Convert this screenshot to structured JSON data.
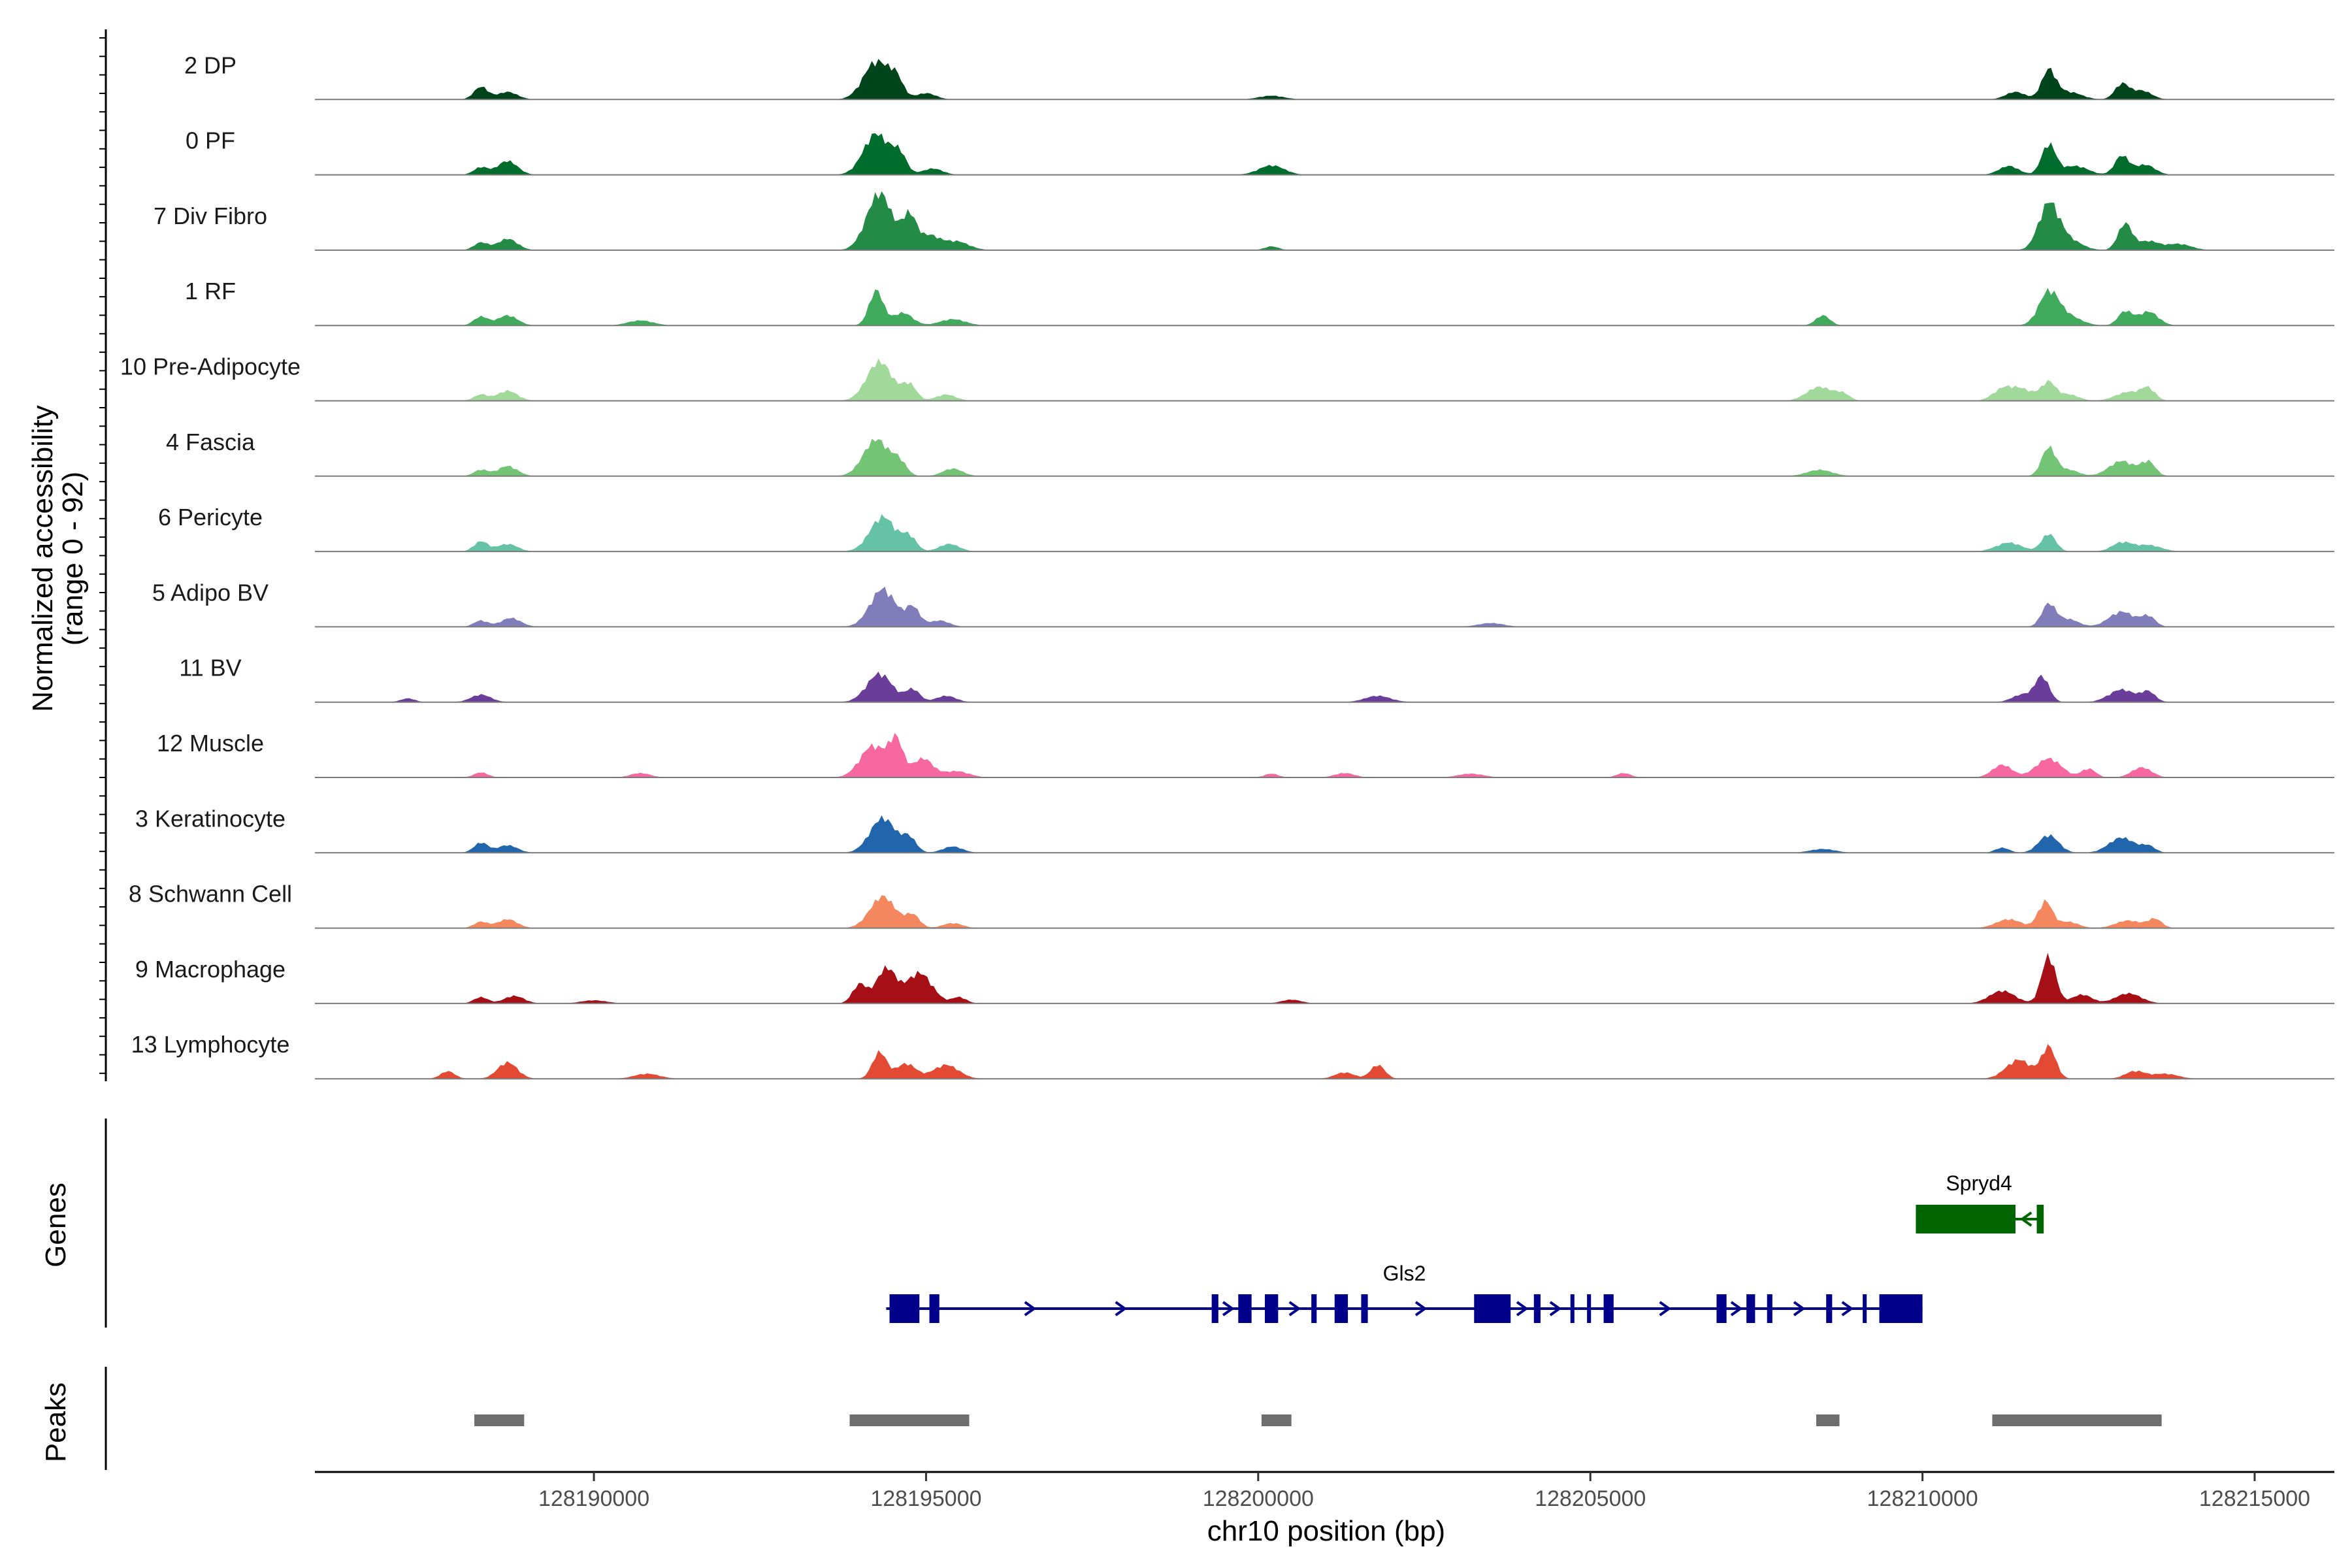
{
  "chart_data": {
    "type": "coverage",
    "chromosome": "chr10",
    "xlabel": "chr10 position (bp)",
    "xlim": [
      128185800,
      128216200
    ],
    "x_ticks": [
      128190000,
      128195000,
      128200000,
      128205000,
      128210000,
      128215000
    ],
    "x_tick_labels": [
      "128190000",
      "128195000",
      "128200000",
      "128205000",
      "128210000",
      "128215000"
    ],
    "coverage_ylabel_line1": "Normalized accessibility",
    "coverage_ylabel_line2": "(range 0 - 92)",
    "coverage_range": [
      0,
      92
    ],
    "genes_ylabel": "Genes",
    "peaks_ylabel": "Peaks",
    "tracks": [
      {
        "name": "2 DP",
        "color": "#00441b",
        "peaks": [
          [
            128188300,
            0.2
          ],
          [
            128188700,
            0.12
          ],
          [
            128194250,
            0.6
          ],
          [
            128194550,
            0.28
          ],
          [
            128195000,
            0.1
          ],
          [
            128200200,
            0.06
          ],
          [
            128211900,
            0.45
          ],
          [
            128211400,
            0.12
          ],
          [
            128212200,
            0.12
          ],
          [
            128213000,
            0.24
          ],
          [
            128213300,
            0.14
          ]
        ]
      },
      {
        "name": "0 PF",
        "color": "#006d2c",
        "peaks": [
          [
            128188300,
            0.12
          ],
          [
            128188700,
            0.22
          ],
          [
            128194250,
            0.65
          ],
          [
            128194600,
            0.3
          ],
          [
            128195100,
            0.1
          ],
          [
            128200200,
            0.15
          ],
          [
            128211900,
            0.48
          ],
          [
            128211300,
            0.14
          ],
          [
            128212300,
            0.14
          ],
          [
            128213000,
            0.3
          ],
          [
            128213350,
            0.16
          ]
        ]
      },
      {
        "name": "7 Div Fibro",
        "color": "#238b45",
        "peaks": [
          [
            128188300,
            0.12
          ],
          [
            128188700,
            0.18
          ],
          [
            128194300,
            0.9
          ],
          [
            128194750,
            0.52
          ],
          [
            128195050,
            0.22
          ],
          [
            128195450,
            0.14
          ],
          [
            128200200,
            0.06
          ],
          [
            128211900,
            0.72
          ],
          [
            128212200,
            0.16
          ],
          [
            128213050,
            0.42
          ],
          [
            128213400,
            0.14
          ],
          [
            128213850,
            0.1
          ]
        ]
      },
      {
        "name": "1 RF",
        "color": "#41ab5d",
        "peaks": [
          [
            128188300,
            0.14
          ],
          [
            128188700,
            0.16
          ],
          [
            128190700,
            0.08
          ],
          [
            128194250,
            0.55
          ],
          [
            128194650,
            0.2
          ],
          [
            128195400,
            0.1
          ],
          [
            128208500,
            0.16
          ],
          [
            128211900,
            0.52
          ],
          [
            128212200,
            0.14
          ],
          [
            128213050,
            0.22
          ],
          [
            128213400,
            0.22
          ]
        ]
      },
      {
        "name": "10 Pre-Adipocyte",
        "color": "#a1d99b",
        "peaks": [
          [
            128188300,
            0.1
          ],
          [
            128188700,
            0.16
          ],
          [
            128194300,
            0.62
          ],
          [
            128194750,
            0.25
          ],
          [
            128195300,
            0.1
          ],
          [
            128208450,
            0.22
          ],
          [
            128208800,
            0.1
          ],
          [
            128211200,
            0.16
          ],
          [
            128211500,
            0.18
          ],
          [
            128211900,
            0.28
          ],
          [
            128212200,
            0.1
          ],
          [
            128213100,
            0.14
          ],
          [
            128213400,
            0.18
          ]
        ]
      },
      {
        "name": "4 Fascia",
        "color": "#74c476",
        "peaks": [
          [
            128188300,
            0.1
          ],
          [
            128188700,
            0.16
          ],
          [
            128194250,
            0.58
          ],
          [
            128194600,
            0.2
          ],
          [
            128195400,
            0.12
          ],
          [
            128208450,
            0.1
          ],
          [
            128211900,
            0.45
          ],
          [
            128212200,
            0.1
          ],
          [
            128213000,
            0.24
          ],
          [
            128213400,
            0.22
          ]
        ]
      },
      {
        "name": "6 Pericyte",
        "color": "#66c2a4",
        "peaks": [
          [
            128188300,
            0.16
          ],
          [
            128188700,
            0.12
          ],
          [
            128194350,
            0.55
          ],
          [
            128194750,
            0.22
          ],
          [
            128195350,
            0.12
          ],
          [
            128211300,
            0.14
          ],
          [
            128211900,
            0.28
          ],
          [
            128213000,
            0.14
          ],
          [
            128213400,
            0.1
          ]
        ]
      },
      {
        "name": "5 Adipo BV",
        "color": "#807dba",
        "peaks": [
          [
            128188300,
            0.1
          ],
          [
            128188750,
            0.14
          ],
          [
            128194350,
            0.6
          ],
          [
            128194800,
            0.3
          ],
          [
            128195200,
            0.1
          ],
          [
            128203500,
            0.06
          ],
          [
            128211900,
            0.36
          ],
          [
            128212200,
            0.12
          ],
          [
            128213000,
            0.24
          ],
          [
            128213400,
            0.16
          ]
        ]
      },
      {
        "name": "11 BV",
        "color": "#6a3d9a",
        "peaks": [
          [
            128187200,
            0.06
          ],
          [
            128188300,
            0.12
          ],
          [
            128194300,
            0.45
          ],
          [
            128194800,
            0.2
          ],
          [
            128195300,
            0.1
          ],
          [
            128201800,
            0.1
          ],
          [
            128211800,
            0.4
          ],
          [
            128211500,
            0.12
          ],
          [
            128213000,
            0.2
          ],
          [
            128213400,
            0.16
          ]
        ]
      },
      {
        "name": "12 Muscle",
        "color": "#f768a1",
        "peaks": [
          [
            128188300,
            0.08
          ],
          [
            128190700,
            0.07
          ],
          [
            128194200,
            0.5
          ],
          [
            128194550,
            0.56
          ],
          [
            128194950,
            0.3
          ],
          [
            128195450,
            0.1
          ],
          [
            128200200,
            0.06
          ],
          [
            128201300,
            0.07
          ],
          [
            128203200,
            0.06
          ],
          [
            128205500,
            0.07
          ],
          [
            128211200,
            0.2
          ],
          [
            128211900,
            0.3
          ],
          [
            128212500,
            0.14
          ],
          [
            128213300,
            0.16
          ]
        ]
      },
      {
        "name": "3 Keratinocyte",
        "color": "#2166ac",
        "peaks": [
          [
            128188300,
            0.16
          ],
          [
            128188700,
            0.12
          ],
          [
            128194350,
            0.55
          ],
          [
            128194750,
            0.22
          ],
          [
            128195400,
            0.1
          ],
          [
            128208500,
            0.06
          ],
          [
            128211200,
            0.08
          ],
          [
            128211900,
            0.28
          ],
          [
            128213000,
            0.24
          ],
          [
            128213400,
            0.1
          ]
        ]
      },
      {
        "name": "8 Schwann Cell",
        "color": "#f4875e",
        "peaks": [
          [
            128188300,
            0.1
          ],
          [
            128188700,
            0.14
          ],
          [
            128194350,
            0.5
          ],
          [
            128194800,
            0.2
          ],
          [
            128195400,
            0.08
          ],
          [
            128211300,
            0.14
          ],
          [
            128211850,
            0.42
          ],
          [
            128212200,
            0.1
          ],
          [
            128213100,
            0.12
          ],
          [
            128213500,
            0.14
          ]
        ]
      },
      {
        "name": "9 Macrophage",
        "color": "#a50f15",
        "peaks": [
          [
            128188300,
            0.1
          ],
          [
            128188800,
            0.12
          ],
          [
            128190000,
            0.05
          ],
          [
            128194000,
            0.3
          ],
          [
            128194400,
            0.55
          ],
          [
            128194900,
            0.48
          ],
          [
            128195500,
            0.1
          ],
          [
            128200500,
            0.06
          ],
          [
            128211200,
            0.2
          ],
          [
            128211900,
            0.75
          ],
          [
            128212400,
            0.14
          ],
          [
            128213100,
            0.16
          ]
        ]
      },
      {
        "name": "13 Lymphocyte",
        "color": "#e34a33",
        "peaks": [
          [
            128187800,
            0.12
          ],
          [
            128188700,
            0.26
          ],
          [
            128190800,
            0.08
          ],
          [
            128194300,
            0.42
          ],
          [
            128194700,
            0.24
          ],
          [
            128195300,
            0.22
          ],
          [
            128201800,
            0.22
          ],
          [
            128201300,
            0.1
          ],
          [
            128211450,
            0.3
          ],
          [
            128211900,
            0.5
          ],
          [
            128213200,
            0.12
          ],
          [
            128213650,
            0.08
          ]
        ]
      }
    ],
    "genes": [
      {
        "name": "Spryd4",
        "color": "#006400",
        "strand": "-",
        "start": 128209900,
        "end": 128211800,
        "exons": [
          [
            128209900,
            128211400
          ],
          [
            128211720,
            128211800
          ]
        ]
      },
      {
        "name": "Gls2",
        "color": "#00008b",
        "strand": "+",
        "start": 128194400,
        "end": 128210000,
        "exons": [
          [
            128194450,
            128194900
          ],
          [
            128195050,
            128195200
          ],
          [
            128199300,
            128199400
          ],
          [
            128199700,
            128199900
          ],
          [
            128200100,
            128200300
          ],
          [
            128200800,
            128200880
          ],
          [
            128201150,
            128201350
          ],
          [
            128201550,
            128201650
          ],
          [
            128203250,
            128203800
          ],
          [
            128204150,
            128204250
          ],
          [
            128204700,
            128204760
          ],
          [
            128204950,
            128205010
          ],
          [
            128205200,
            128205350
          ],
          [
            128206900,
            128207050
          ],
          [
            128207350,
            128207480
          ],
          [
            128207660,
            128207740
          ],
          [
            128208550,
            128208640
          ],
          [
            128209100,
            128209160
          ],
          [
            128209350,
            128210000
          ]
        ]
      }
    ],
    "peaks": [
      [
        128188200,
        128188950
      ],
      [
        128193850,
        128195650
      ],
      [
        128200050,
        128200500
      ],
      [
        128208400,
        128208750
      ],
      [
        128211050,
        128213600
      ]
    ]
  }
}
